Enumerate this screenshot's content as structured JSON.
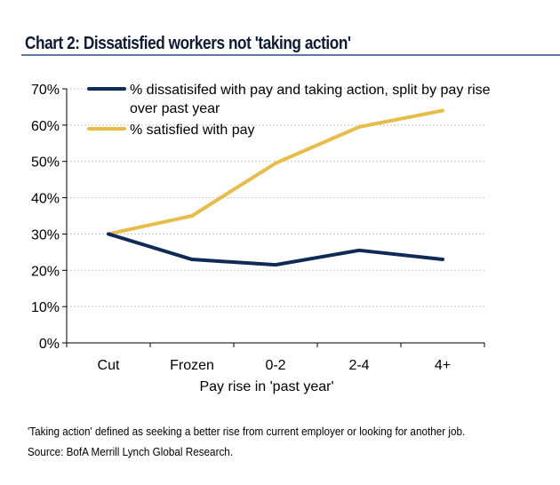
{
  "header": {
    "title": "Chart 2: Dissatisfied workers not 'taking action'"
  },
  "chart_data": {
    "type": "line",
    "title": "Chart 2: Dissatisfied workers not 'taking action'",
    "xlabel": "Pay rise in 'past year'",
    "ylabel": "",
    "categories": [
      "Cut",
      "Frozen",
      "0-2",
      "2-4",
      "4+"
    ],
    "ylim": [
      0,
      70
    ],
    "yticks": [
      0,
      10,
      20,
      30,
      40,
      50,
      60,
      70
    ],
    "ytick_labels": [
      "0%",
      "10%",
      "20%",
      "30%",
      "40%",
      "50%",
      "60%",
      "70%"
    ],
    "grid": true,
    "legend_position": "top-left",
    "series": [
      {
        "name": "% dissatisifed with pay and taking action, split by pay rise over past year",
        "legend_lines": [
          "% dissatisifed with pay and taking action, split by pay rise",
          "over past year"
        ],
        "color": "#0f2a55",
        "values": [
          30,
          23,
          21.5,
          25.5,
          23
        ]
      },
      {
        "name": "% satisfied with pay",
        "legend_lines": [
          "% satisfied with pay"
        ],
        "color": "#e6bd4a",
        "values": [
          30,
          35,
          49.5,
          59.5,
          64
        ]
      }
    ]
  },
  "footer": {
    "note": "'Taking action' defined as seeking a better rise from current employer or looking for another job.",
    "source": "Source: BofA Merrill Lynch Global Research."
  }
}
